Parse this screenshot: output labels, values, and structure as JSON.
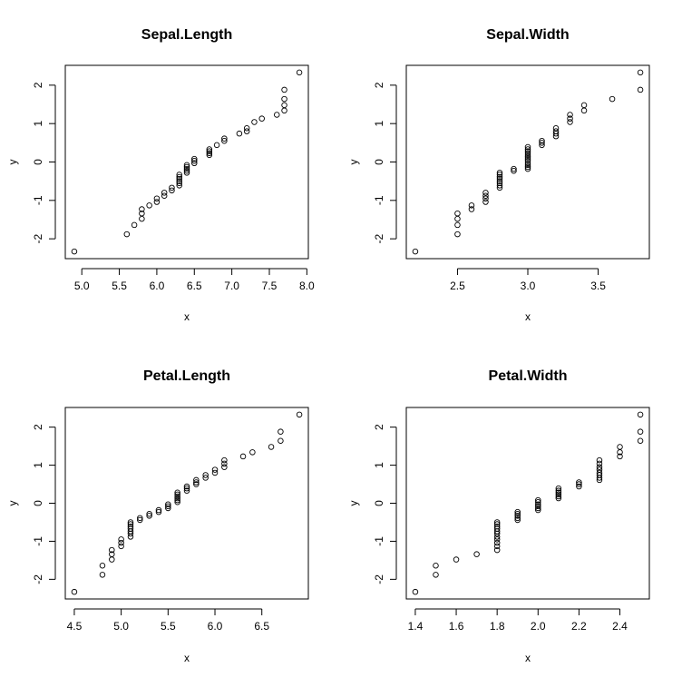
{
  "chart_data": [
    {
      "type": "scatter",
      "title": "Sepal.Length",
      "xlabel": "x",
      "ylabel": "y",
      "xlim": [
        4.9,
        7.9
      ],
      "ylim": [
        -2.33,
        2.33
      ],
      "xticks": [
        5.0,
        5.5,
        6.0,
        6.5,
        7.0,
        7.5,
        8.0
      ],
      "xtick_labels": [
        "5.0",
        "5.5",
        "6.0",
        "6.5",
        "7.0",
        "7.5",
        "8.0"
      ],
      "yticks": [
        -2,
        -1,
        0,
        1,
        2
      ],
      "ytick_labels": [
        "-2",
        "-1",
        "0",
        "1",
        "2"
      ],
      "grid": false,
      "series": [
        {
          "x": [
            4.9,
            5.6,
            5.7,
            5.8,
            5.8,
            5.8,
            5.9,
            6.0,
            6.0,
            6.1,
            6.1,
            6.2,
            6.2,
            6.3,
            6.3,
            6.3,
            6.3,
            6.3,
            6.3,
            6.4,
            6.4,
            6.4,
            6.4,
            6.4,
            6.5,
            6.5,
            6.5,
            6.7,
            6.7,
            6.7,
            6.7,
            6.8,
            6.9,
            6.9,
            7.1,
            7.2,
            7.2,
            7.3,
            7.4,
            7.6,
            7.7,
            7.7,
            7.7,
            7.7,
            7.9
          ],
          "y": [
            -2.33,
            -1.88,
            -1.64,
            -1.48,
            -1.34,
            -1.23,
            -1.13,
            -1.04,
            -0.95,
            -0.88,
            -0.8,
            -0.74,
            -0.67,
            -0.61,
            -0.55,
            -0.5,
            -0.44,
            -0.39,
            -0.33,
            -0.28,
            -0.23,
            -0.18,
            -0.13,
            -0.08,
            -0.03,
            0.03,
            0.08,
            0.18,
            0.23,
            0.28,
            0.33,
            0.44,
            0.55,
            0.61,
            0.74,
            0.8,
            0.88,
            1.04,
            1.13,
            1.23,
            1.34,
            1.48,
            1.64,
            1.88,
            2.33
          ]
        }
      ]
    },
    {
      "type": "scatter",
      "title": "Sepal.Width",
      "xlabel": "x",
      "ylabel": "y",
      "xlim": [
        2.2,
        3.8
      ],
      "ylim": [
        -2.33,
        2.33
      ],
      "xticks": [
        2.5,
        3.0,
        3.5
      ],
      "xtick_labels": [
        "2.5",
        "3.0",
        "3.5"
      ],
      "yticks": [
        -2,
        -1,
        0,
        1,
        2
      ],
      "ytick_labels": [
        "-2",
        "-1",
        "0",
        "1",
        "2"
      ],
      "grid": false,
      "series": [
        {
          "x": [
            2.2,
            2.5,
            2.5,
            2.5,
            2.5,
            2.6,
            2.6,
            2.7,
            2.7,
            2.7,
            2.7,
            2.8,
            2.8,
            2.8,
            2.8,
            2.8,
            2.8,
            2.8,
            2.8,
            2.9,
            2.9,
            3.0,
            3.0,
            3.0,
            3.0,
            3.0,
            3.0,
            3.0,
            3.0,
            3.0,
            3.0,
            3.0,
            3.0,
            3.1,
            3.1,
            3.1,
            3.2,
            3.2,
            3.2,
            3.2,
            3.3,
            3.3,
            3.3,
            3.4,
            3.4,
            3.6,
            3.8,
            3.8
          ],
          "y": [
            -2.33,
            -1.88,
            -1.64,
            -1.48,
            -1.34,
            -1.23,
            -1.13,
            -1.04,
            -0.95,
            -0.88,
            -0.8,
            -0.67,
            -0.61,
            -0.55,
            -0.5,
            -0.44,
            -0.39,
            -0.33,
            -0.28,
            -0.23,
            -0.18,
            -0.18,
            -0.13,
            -0.08,
            -0.03,
            0.03,
            0.08,
            0.13,
            0.18,
            0.23,
            0.28,
            0.33,
            0.39,
            0.44,
            0.5,
            0.55,
            0.67,
            0.74,
            0.8,
            0.88,
            1.04,
            1.13,
            1.23,
            1.34,
            1.48,
            1.64,
            1.88,
            2.33
          ]
        }
      ]
    },
    {
      "type": "scatter",
      "title": "Petal.Length",
      "xlabel": "x",
      "ylabel": "y",
      "xlim": [
        4.5,
        6.9
      ],
      "ylim": [
        -2.33,
        2.33
      ],
      "xticks": [
        4.5,
        5.0,
        5.5,
        6.0,
        6.5
      ],
      "xtick_labels": [
        "4.5",
        "5.0",
        "5.5",
        "6.0",
        "6.5"
      ],
      "yticks": [
        -2,
        -1,
        0,
        1,
        2
      ],
      "ytick_labels": [
        "-2",
        "-1",
        "0",
        "1",
        "2"
      ],
      "grid": false,
      "series": [
        {
          "x": [
            4.5,
            4.8,
            4.8,
            4.9,
            4.9,
            4.9,
            5.0,
            5.0,
            5.0,
            5.1,
            5.1,
            5.1,
            5.1,
            5.1,
            5.1,
            5.1,
            5.2,
            5.2,
            5.3,
            5.3,
            5.4,
            5.4,
            5.5,
            5.5,
            5.5,
            5.6,
            5.6,
            5.6,
            5.6,
            5.6,
            5.6,
            5.7,
            5.7,
            5.7,
            5.8,
            5.8,
            5.8,
            5.9,
            5.9,
            6.0,
            6.0,
            6.1,
            6.1,
            6.1,
            6.3,
            6.4,
            6.6,
            6.7,
            6.7,
            6.9
          ],
          "y": [
            -2.33,
            -1.88,
            -1.64,
            -1.48,
            -1.34,
            -1.23,
            -1.13,
            -1.04,
            -0.95,
            -0.88,
            -0.8,
            -0.74,
            -0.67,
            -0.61,
            -0.55,
            -0.5,
            -0.44,
            -0.39,
            -0.33,
            -0.28,
            -0.23,
            -0.18,
            -0.13,
            -0.08,
            -0.03,
            0.03,
            0.08,
            0.13,
            0.18,
            0.23,
            0.28,
            0.33,
            0.39,
            0.44,
            0.5,
            0.55,
            0.61,
            0.67,
            0.74,
            0.8,
            0.88,
            0.95,
            1.04,
            1.13,
            1.23,
            1.34,
            1.48,
            1.64,
            1.88,
            2.33
          ]
        }
      ]
    },
    {
      "type": "scatter",
      "title": "Petal.Width",
      "xlabel": "x",
      "ylabel": "y",
      "xlim": [
        1.4,
        2.5
      ],
      "ylim": [
        -2.33,
        2.33
      ],
      "xticks": [
        1.4,
        1.6,
        1.8,
        2.0,
        2.2,
        2.4
      ],
      "xtick_labels": [
        "1.4",
        "1.6",
        "1.8",
        "2.0",
        "2.2",
        "2.4"
      ],
      "yticks": [
        -2,
        -1,
        0,
        1,
        2
      ],
      "ytick_labels": [
        "-2",
        "-1",
        "0",
        "1",
        "2"
      ],
      "grid": false,
      "series": [
        {
          "x": [
            1.4,
            1.5,
            1.5,
            1.6,
            1.7,
            1.8,
            1.8,
            1.8,
            1.8,
            1.8,
            1.8,
            1.8,
            1.8,
            1.8,
            1.8,
            1.8,
            1.9,
            1.9,
            1.9,
            1.9,
            1.9,
            2.0,
            2.0,
            2.0,
            2.0,
            2.0,
            2.0,
            2.1,
            2.1,
            2.1,
            2.1,
            2.1,
            2.1,
            2.2,
            2.2,
            2.2,
            2.3,
            2.3,
            2.3,
            2.3,
            2.3,
            2.3,
            2.3,
            2.3,
            2.4,
            2.4,
            2.4,
            2.5,
            2.5,
            2.5
          ],
          "y": [
            -2.33,
            -1.88,
            -1.64,
            -1.48,
            -1.34,
            -1.23,
            -1.13,
            -1.04,
            -0.95,
            -0.88,
            -0.8,
            -0.74,
            -0.67,
            -0.61,
            -0.55,
            -0.5,
            -0.44,
            -0.39,
            -0.33,
            -0.28,
            -0.23,
            -0.18,
            -0.13,
            -0.08,
            -0.03,
            0.03,
            0.08,
            0.13,
            0.18,
            0.23,
            0.28,
            0.33,
            0.39,
            0.44,
            0.5,
            0.55,
            0.61,
            0.67,
            0.74,
            0.8,
            0.88,
            0.95,
            1.04,
            1.13,
            1.23,
            1.34,
            1.48,
            1.64,
            1.88,
            2.33
          ]
        }
      ]
    }
  ]
}
